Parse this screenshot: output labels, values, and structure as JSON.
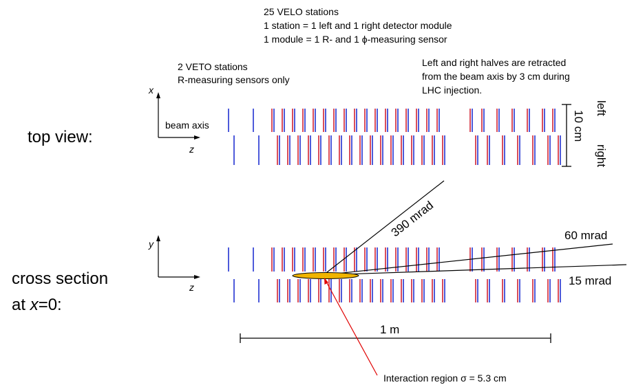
{
  "header": {
    "line1": "25 VELO stations",
    "line2": "1 station  = 1 left and 1 right detector module",
    "line3": "1 module = 1 R- and 1 ϕ-measuring sensor"
  },
  "veto_note": {
    "line1": "2 VETO stations",
    "line2": "R-measuring sensors only"
  },
  "retract_note": {
    "line1": "Left and right halves are retracted",
    "line2": "from the beam axis by 3 cm during",
    "line3": "LHC injection."
  },
  "top_view": {
    "label": "top view:",
    "x_axis": "x",
    "z_axis": "z",
    "beam_axis": "beam axis",
    "scale": "10 cm",
    "left": "left",
    "right": "right"
  },
  "cross_section": {
    "label_line1": "cross section",
    "label_line2_prefix": "at ",
    "label_line2_var": "x",
    "label_line2_suffix": "=0:",
    "y_axis": "y",
    "z_axis": "z",
    "angle_390": "390 mrad",
    "angle_60": "60 mrad",
    "angle_15": "15 mrad",
    "scale": "1 m",
    "interaction_region": "Interaction region  σ = 5.3 cm"
  },
  "colors": {
    "r_sensor": "#2030d0",
    "phi_sensor": "#d02030",
    "interaction_fill": "#f0b400",
    "pointer": "#e00000"
  }
}
